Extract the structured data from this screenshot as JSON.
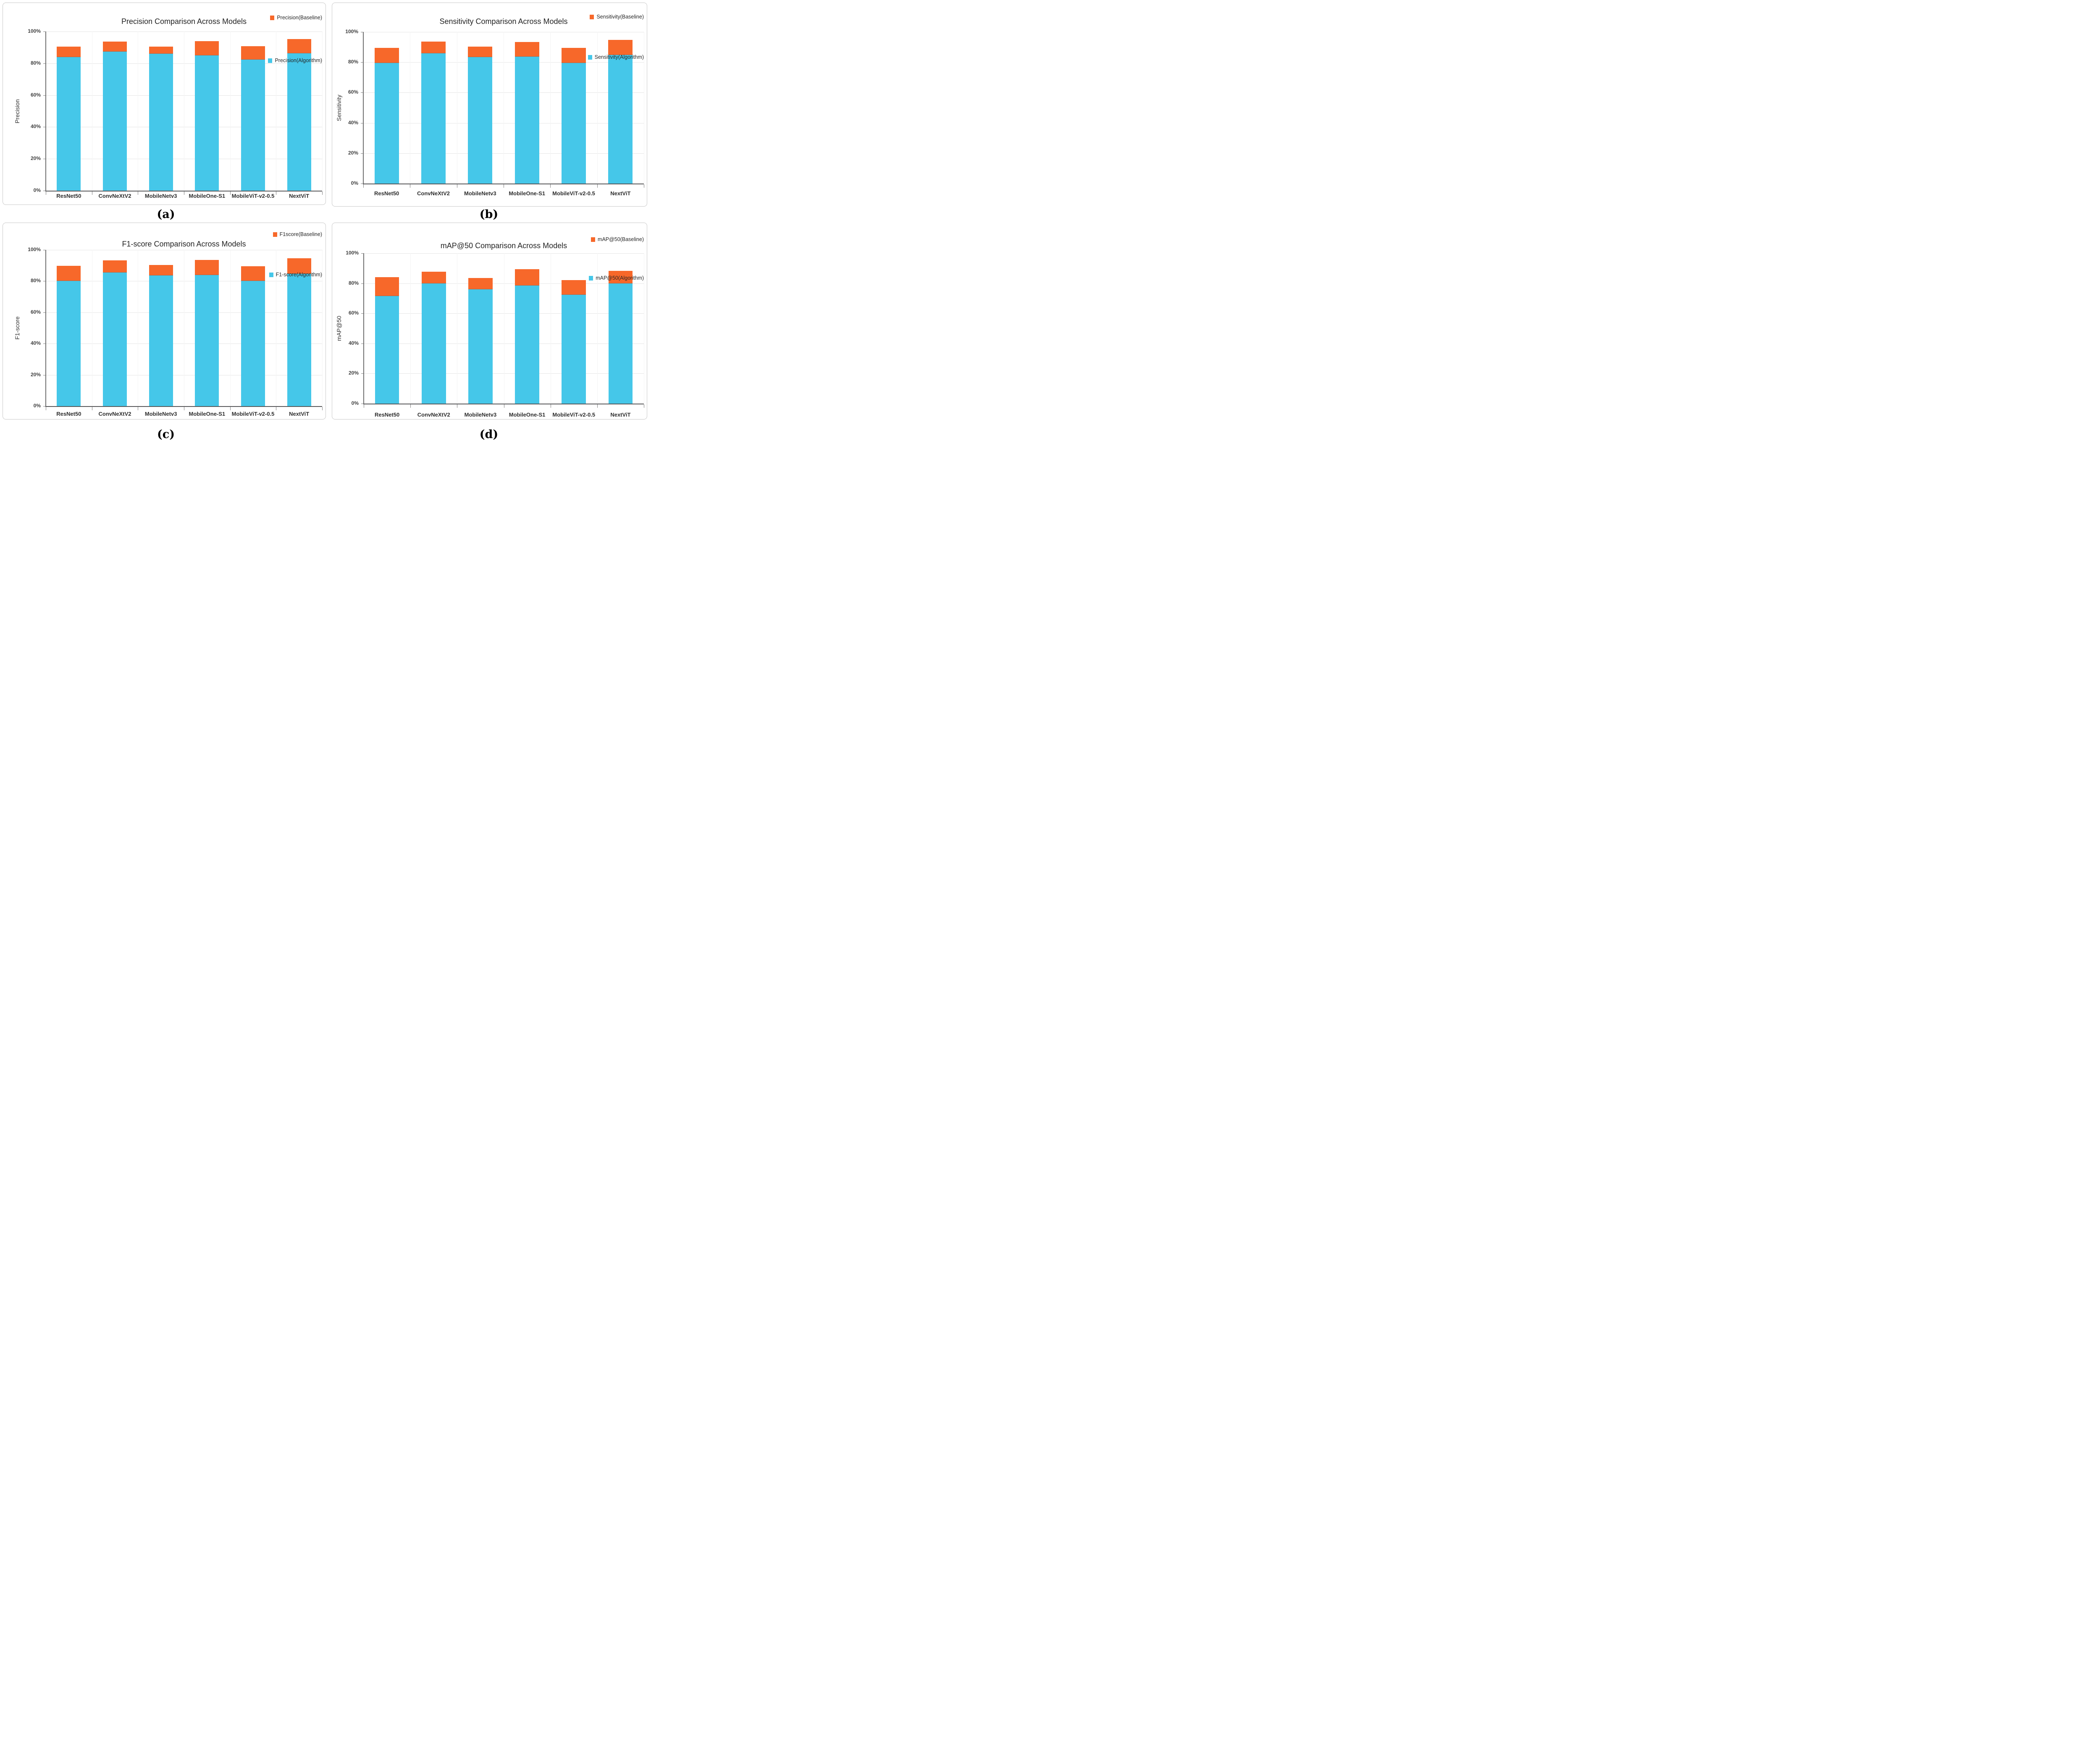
{
  "figure": {
    "background": "#ffffff",
    "categories": [
      "ResNet50",
      "ConvNeXtV2",
      "MobileNetv3",
      "MobileOne-S1",
      "MobileViT-v2-0.5",
      "NextViT"
    ],
    "y_ticks": [
      "0%",
      "20%",
      "40%",
      "60%",
      "80%",
      "100%"
    ],
    "colors": {
      "baseline_orange": "#F7682A",
      "algorithm_blue": "#45C7E9"
    }
  },
  "chart_data": [
    {
      "type": "bar",
      "subtype": "overlaid-stacked (algorithm bar in front, baseline cap above)",
      "panel_letter": "(a)",
      "title": "Precision Comparison Across Models",
      "ylabel": "Precision",
      "ylim": [
        0,
        100
      ],
      "yticks": [
        "0%",
        "20%",
        "40%",
        "60%",
        "80%",
        "100%"
      ],
      "grid": true,
      "legend_position": "top-right",
      "categories": [
        "ResNet50",
        "ConvNeXtV2",
        "MobileNetv3",
        "MobileOne-S1",
        "MobileViT-v2-0.5",
        "NextViT"
      ],
      "series": [
        {
          "name": "Precision(Baseline)",
          "color": "#F7682A",
          "values": [
            90.4,
            93.7,
            90.6,
            93.8,
            90.7,
            95.2
          ]
        },
        {
          "name": "Precision(Algorithm)",
          "color": "#45C7E9",
          "values": [
            84.0,
            87.3,
            86.0,
            85.0,
            82.3,
            86.4
          ]
        }
      ]
    },
    {
      "type": "bar",
      "subtype": "overlaid-stacked (algorithm bar in front, baseline cap above)",
      "panel_letter": "(b)",
      "title": "Sensitivity Comparison Across Models",
      "ylabel": "Sensitivity",
      "ylim": [
        0,
        100
      ],
      "yticks": [
        "0%",
        "20%",
        "40%",
        "60%",
        "80%",
        "100%"
      ],
      "grid": true,
      "legend_position": "top-right",
      "categories": [
        "ResNet50",
        "ConvNeXtV2",
        "MobileNetv3",
        "MobileOne-S1",
        "MobileViT-v2-0.5",
        "NextViT"
      ],
      "series": [
        {
          "name": "Sensitivity(Baseline)",
          "color": "#F7682A",
          "values": [
            89.6,
            93.5,
            90.3,
            93.3,
            89.4,
            94.6
          ]
        },
        {
          "name": "Sensitivity(Algorithm)",
          "color": "#45C7E9",
          "values": [
            79.4,
            86.0,
            83.4,
            83.6,
            79.6,
            84.9
          ]
        }
      ]
    },
    {
      "type": "bar",
      "subtype": "overlaid-stacked (algorithm bar in front, baseline cap above)",
      "panel_letter": "(c)",
      "title": "F1-score Comparison Across Models",
      "ylabel": "F1-score",
      "ylim": [
        0,
        100
      ],
      "yticks": [
        "0%",
        "20%",
        "40%",
        "60%",
        "80%",
        "100%"
      ],
      "grid": true,
      "legend_position": "top-right",
      "categories": [
        "ResNet50",
        "ConvNeXtV2",
        "MobileNetv3",
        "MobileOne-S1",
        "MobileViT-v2-0.5",
        "NextViT"
      ],
      "series": [
        {
          "name": "F1score(Baseline)",
          "color": "#F7682A",
          "values": [
            89.7,
            93.2,
            90.3,
            93.5,
            89.6,
            94.6
          ]
        },
        {
          "name": "F1-score(Algorithm)",
          "color": "#45C7E9",
          "values": [
            80.0,
            85.5,
            83.6,
            83.9,
            80.0,
            84.6
          ]
        }
      ]
    },
    {
      "type": "bar",
      "subtype": "overlaid-stacked (algorithm bar in front, baseline cap above)",
      "panel_letter": "(d)",
      "title": "mAP@50 Comparison Across Models",
      "ylabel": "mAP@50",
      "ylim": [
        0,
        100
      ],
      "yticks": [
        "0%",
        "20%",
        "40%",
        "60%",
        "80%",
        "100%"
      ],
      "grid": true,
      "legend_position": "top-right",
      "categories": [
        "ResNet50",
        "ConvNeXtV2",
        "MobileNetv3",
        "MobileOne-S1",
        "MobileViT-v2-0.5",
        "NextViT"
      ],
      "series": [
        {
          "name": "mAP@50(Baseline)",
          "color": "#F7682A",
          "values": [
            84.0,
            87.8,
            83.5,
            89.3,
            82.1,
            88.4
          ]
        },
        {
          "name": "mAP@50(Algorithm)",
          "color": "#45C7E9",
          "values": [
            71.4,
            80.0,
            76.1,
            78.5,
            72.4,
            79.8
          ]
        }
      ]
    }
  ]
}
